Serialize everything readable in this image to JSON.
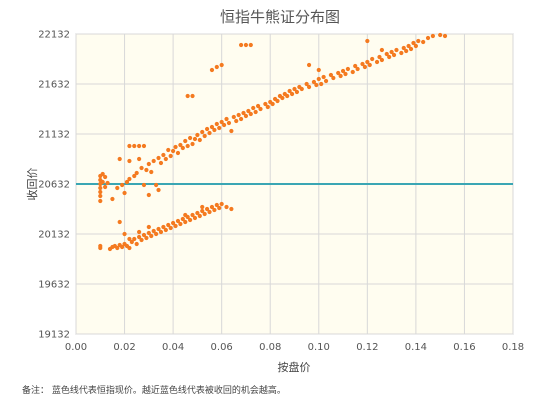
{
  "chart_data": {
    "type": "scatter",
    "title": "恒指牛熊证分布图",
    "xlabel": "按盘价",
    "ylabel": "收回价",
    "xlim": [
      0,
      0.18
    ],
    "ylim": [
      19132,
      22132
    ],
    "x_ticks": [
      "0.00",
      "0.02",
      "0.04",
      "0.06",
      "0.08",
      "0.10",
      "0.12",
      "0.14",
      "0.16",
      "0.18"
    ],
    "y_ticks": [
      "19132",
      "19632",
      "20132",
      "20632",
      "21132",
      "21632",
      "22132"
    ],
    "grid": true,
    "reference_line": {
      "y": 20632,
      "color": "#3aa6b4"
    },
    "point_color": "#f47a20",
    "background_color": "#fffdf0",
    "series": [
      {
        "points": [
          [
            0.01,
            20712
          ],
          [
            0.01,
            20672
          ],
          [
            0.01,
            20632
          ],
          [
            0.01,
            20592
          ],
          [
            0.01,
            20552
          ],
          [
            0.01,
            20512
          ],
          [
            0.01,
            20462
          ],
          [
            0.011,
            20732
          ],
          [
            0.011,
            20652
          ],
          [
            0.012,
            20702
          ],
          [
            0.012,
            20602
          ],
          [
            0.013,
            20642
          ],
          [
            0.015,
            20482
          ],
          [
            0.017,
            20592
          ],
          [
            0.018,
            20882
          ],
          [
            0.019,
            20622
          ],
          [
            0.02,
            20542
          ],
          [
            0.021,
            20652
          ],
          [
            0.022,
            20682
          ],
          [
            0.022,
            20862
          ],
          [
            0.024,
            20712
          ],
          [
            0.025,
            20742
          ],
          [
            0.026,
            20882
          ],
          [
            0.027,
            20792
          ],
          [
            0.028,
            20622
          ],
          [
            0.029,
            20772
          ],
          [
            0.03,
            20832
          ],
          [
            0.031,
            20752
          ],
          [
            0.032,
            20862
          ],
          [
            0.033,
            20622
          ],
          [
            0.034,
            20892
          ],
          [
            0.035,
            20842
          ],
          [
            0.036,
            20922
          ],
          [
            0.037,
            20882
          ],
          [
            0.038,
            20972
          ],
          [
            0.039,
            20912
          ],
          [
            0.04,
            20962
          ],
          [
            0.041,
            21002
          ],
          [
            0.042,
            20942
          ],
          [
            0.043,
            21022
          ],
          [
            0.044,
            20992
          ],
          [
            0.045,
            21062
          ],
          [
            0.046,
            21012
          ],
          [
            0.047,
            21092
          ],
          [
            0.048,
            21032
          ],
          [
            0.049,
            21082
          ],
          [
            0.05,
            21122
          ],
          [
            0.051,
            21072
          ],
          [
            0.052,
            21152
          ],
          [
            0.053,
            21112
          ],
          [
            0.054,
            21182
          ],
          [
            0.055,
            21142
          ],
          [
            0.056,
            21202
          ],
          [
            0.057,
            21172
          ],
          [
            0.058,
            21232
          ],
          [
            0.059,
            21192
          ],
          [
            0.06,
            21252
          ],
          [
            0.061,
            21222
          ],
          [
            0.062,
            21282
          ],
          [
            0.063,
            21242
          ],
          [
            0.064,
            21162
          ],
          [
            0.065,
            21302
          ],
          [
            0.066,
            21262
          ],
          [
            0.067,
            21322
          ],
          [
            0.068,
            21282
          ],
          [
            0.069,
            21342
          ],
          [
            0.07,
            21312
          ],
          [
            0.071,
            21362
          ],
          [
            0.072,
            21332
          ],
          [
            0.073,
            21392
          ],
          [
            0.074,
            21352
          ],
          [
            0.075,
            21412
          ],
          [
            0.076,
            21382
          ],
          [
            0.078,
            21432
          ],
          [
            0.079,
            21402
          ],
          [
            0.08,
            21452
          ],
          [
            0.081,
            21432
          ],
          [
            0.082,
            21482
          ],
          [
            0.083,
            21462
          ],
          [
            0.084,
            21512
          ],
          [
            0.085,
            21492
          ],
          [
            0.086,
            21532
          ],
          [
            0.087,
            21512
          ],
          [
            0.088,
            21562
          ],
          [
            0.089,
            21532
          ],
          [
            0.09,
            21582
          ],
          [
            0.091,
            21552
          ],
          [
            0.092,
            21602
          ],
          [
            0.093,
            21582
          ],
          [
            0.095,
            21632
          ],
          [
            0.096,
            21602
          ],
          [
            0.098,
            21652
          ],
          [
            0.099,
            21622
          ],
          [
            0.1,
            21682
          ],
          [
            0.101,
            21632
          ],
          [
            0.102,
            21702
          ],
          [
            0.103,
            21662
          ],
          [
            0.105,
            21722
          ],
          [
            0.106,
            21692
          ],
          [
            0.108,
            21742
          ],
          [
            0.109,
            21712
          ],
          [
            0.11,
            21762
          ],
          [
            0.111,
            21732
          ],
          [
            0.112,
            21782
          ],
          [
            0.114,
            21752
          ],
          [
            0.115,
            21812
          ],
          [
            0.116,
            21782
          ],
          [
            0.118,
            21832
          ],
          [
            0.119,
            21802
          ],
          [
            0.12,
            21852
          ],
          [
            0.121,
            21822
          ],
          [
            0.122,
            21882
          ],
          [
            0.124,
            21852
          ],
          [
            0.125,
            21902
          ],
          [
            0.126,
            21872
          ],
          [
            0.128,
            21932
          ],
          [
            0.129,
            21902
          ],
          [
            0.13,
            21952
          ],
          [
            0.131,
            21922
          ],
          [
            0.132,
            21972
          ],
          [
            0.134,
            21942
          ],
          [
            0.135,
            21992
          ],
          [
            0.136,
            21962
          ],
          [
            0.137,
            22012
          ],
          [
            0.138,
            21982
          ],
          [
            0.139,
            22042
          ],
          [
            0.14,
            22012
          ],
          [
            0.141,
            22062
          ],
          [
            0.143,
            22052
          ],
          [
            0.145,
            22092
          ],
          [
            0.147,
            22112
          ],
          [
            0.15,
            22122
          ],
          [
            0.152,
            22112
          ],
          [
            0.12,
            22062
          ],
          [
            0.126,
            21972
          ],
          [
            0.022,
            21012
          ],
          [
            0.024,
            21012
          ],
          [
            0.026,
            21012
          ],
          [
            0.028,
            21012
          ],
          [
            0.046,
            21512
          ],
          [
            0.048,
            21512
          ],
          [
            0.056,
            21772
          ],
          [
            0.058,
            21802
          ],
          [
            0.06,
            21822
          ],
          [
            0.068,
            22022
          ],
          [
            0.07,
            22022
          ],
          [
            0.072,
            22022
          ],
          [
            0.096,
            21822
          ],
          [
            0.1,
            21772
          ],
          [
            0.03,
            20522
          ],
          [
            0.034,
            20572
          ]
        ]
      },
      {
        "points": [
          [
            0.01,
            20012
          ],
          [
            0.01,
            19992
          ],
          [
            0.014,
            19982
          ],
          [
            0.015,
            20002
          ],
          [
            0.016,
            20012
          ],
          [
            0.017,
            19992
          ],
          [
            0.018,
            20022
          ],
          [
            0.019,
            20002
          ],
          [
            0.02,
            20032
          ],
          [
            0.021,
            20012
          ],
          [
            0.022,
            19992
          ],
          [
            0.023,
            20052
          ],
          [
            0.024,
            20082
          ],
          [
            0.025,
            20032
          ],
          [
            0.026,
            20102
          ],
          [
            0.027,
            20072
          ],
          [
            0.028,
            20122
          ],
          [
            0.029,
            20092
          ],
          [
            0.03,
            20142
          ],
          [
            0.031,
            20112
          ],
          [
            0.032,
            20162
          ],
          [
            0.033,
            20132
          ],
          [
            0.034,
            20182
          ],
          [
            0.035,
            20152
          ],
          [
            0.036,
            20202
          ],
          [
            0.037,
            20172
          ],
          [
            0.038,
            20222
          ],
          [
            0.039,
            20192
          ],
          [
            0.04,
            20242
          ],
          [
            0.041,
            20212
          ],
          [
            0.042,
            20262
          ],
          [
            0.043,
            20232
          ],
          [
            0.044,
            20282
          ],
          [
            0.045,
            20252
          ],
          [
            0.046,
            20302
          ],
          [
            0.047,
            20272
          ],
          [
            0.048,
            20322
          ],
          [
            0.049,
            20292
          ],
          [
            0.05,
            20342
          ],
          [
            0.051,
            20312
          ],
          [
            0.052,
            20362
          ],
          [
            0.053,
            20332
          ],
          [
            0.054,
            20382
          ],
          [
            0.055,
            20352
          ],
          [
            0.056,
            20402
          ],
          [
            0.057,
            20372
          ],
          [
            0.058,
            20422
          ],
          [
            0.059,
            20392
          ],
          [
            0.06,
            20432
          ],
          [
            0.062,
            20402
          ],
          [
            0.064,
            20382
          ],
          [
            0.018,
            20252
          ],
          [
            0.02,
            20132
          ],
          [
            0.022,
            20082
          ],
          [
            0.026,
            20152
          ],
          [
            0.03,
            20202
          ],
          [
            0.045,
            20322
          ],
          [
            0.052,
            20402
          ]
        ]
      }
    ]
  },
  "note": "备注： 蓝色线代表恒指现价。越近蓝色线代表被收回的机会越高。"
}
